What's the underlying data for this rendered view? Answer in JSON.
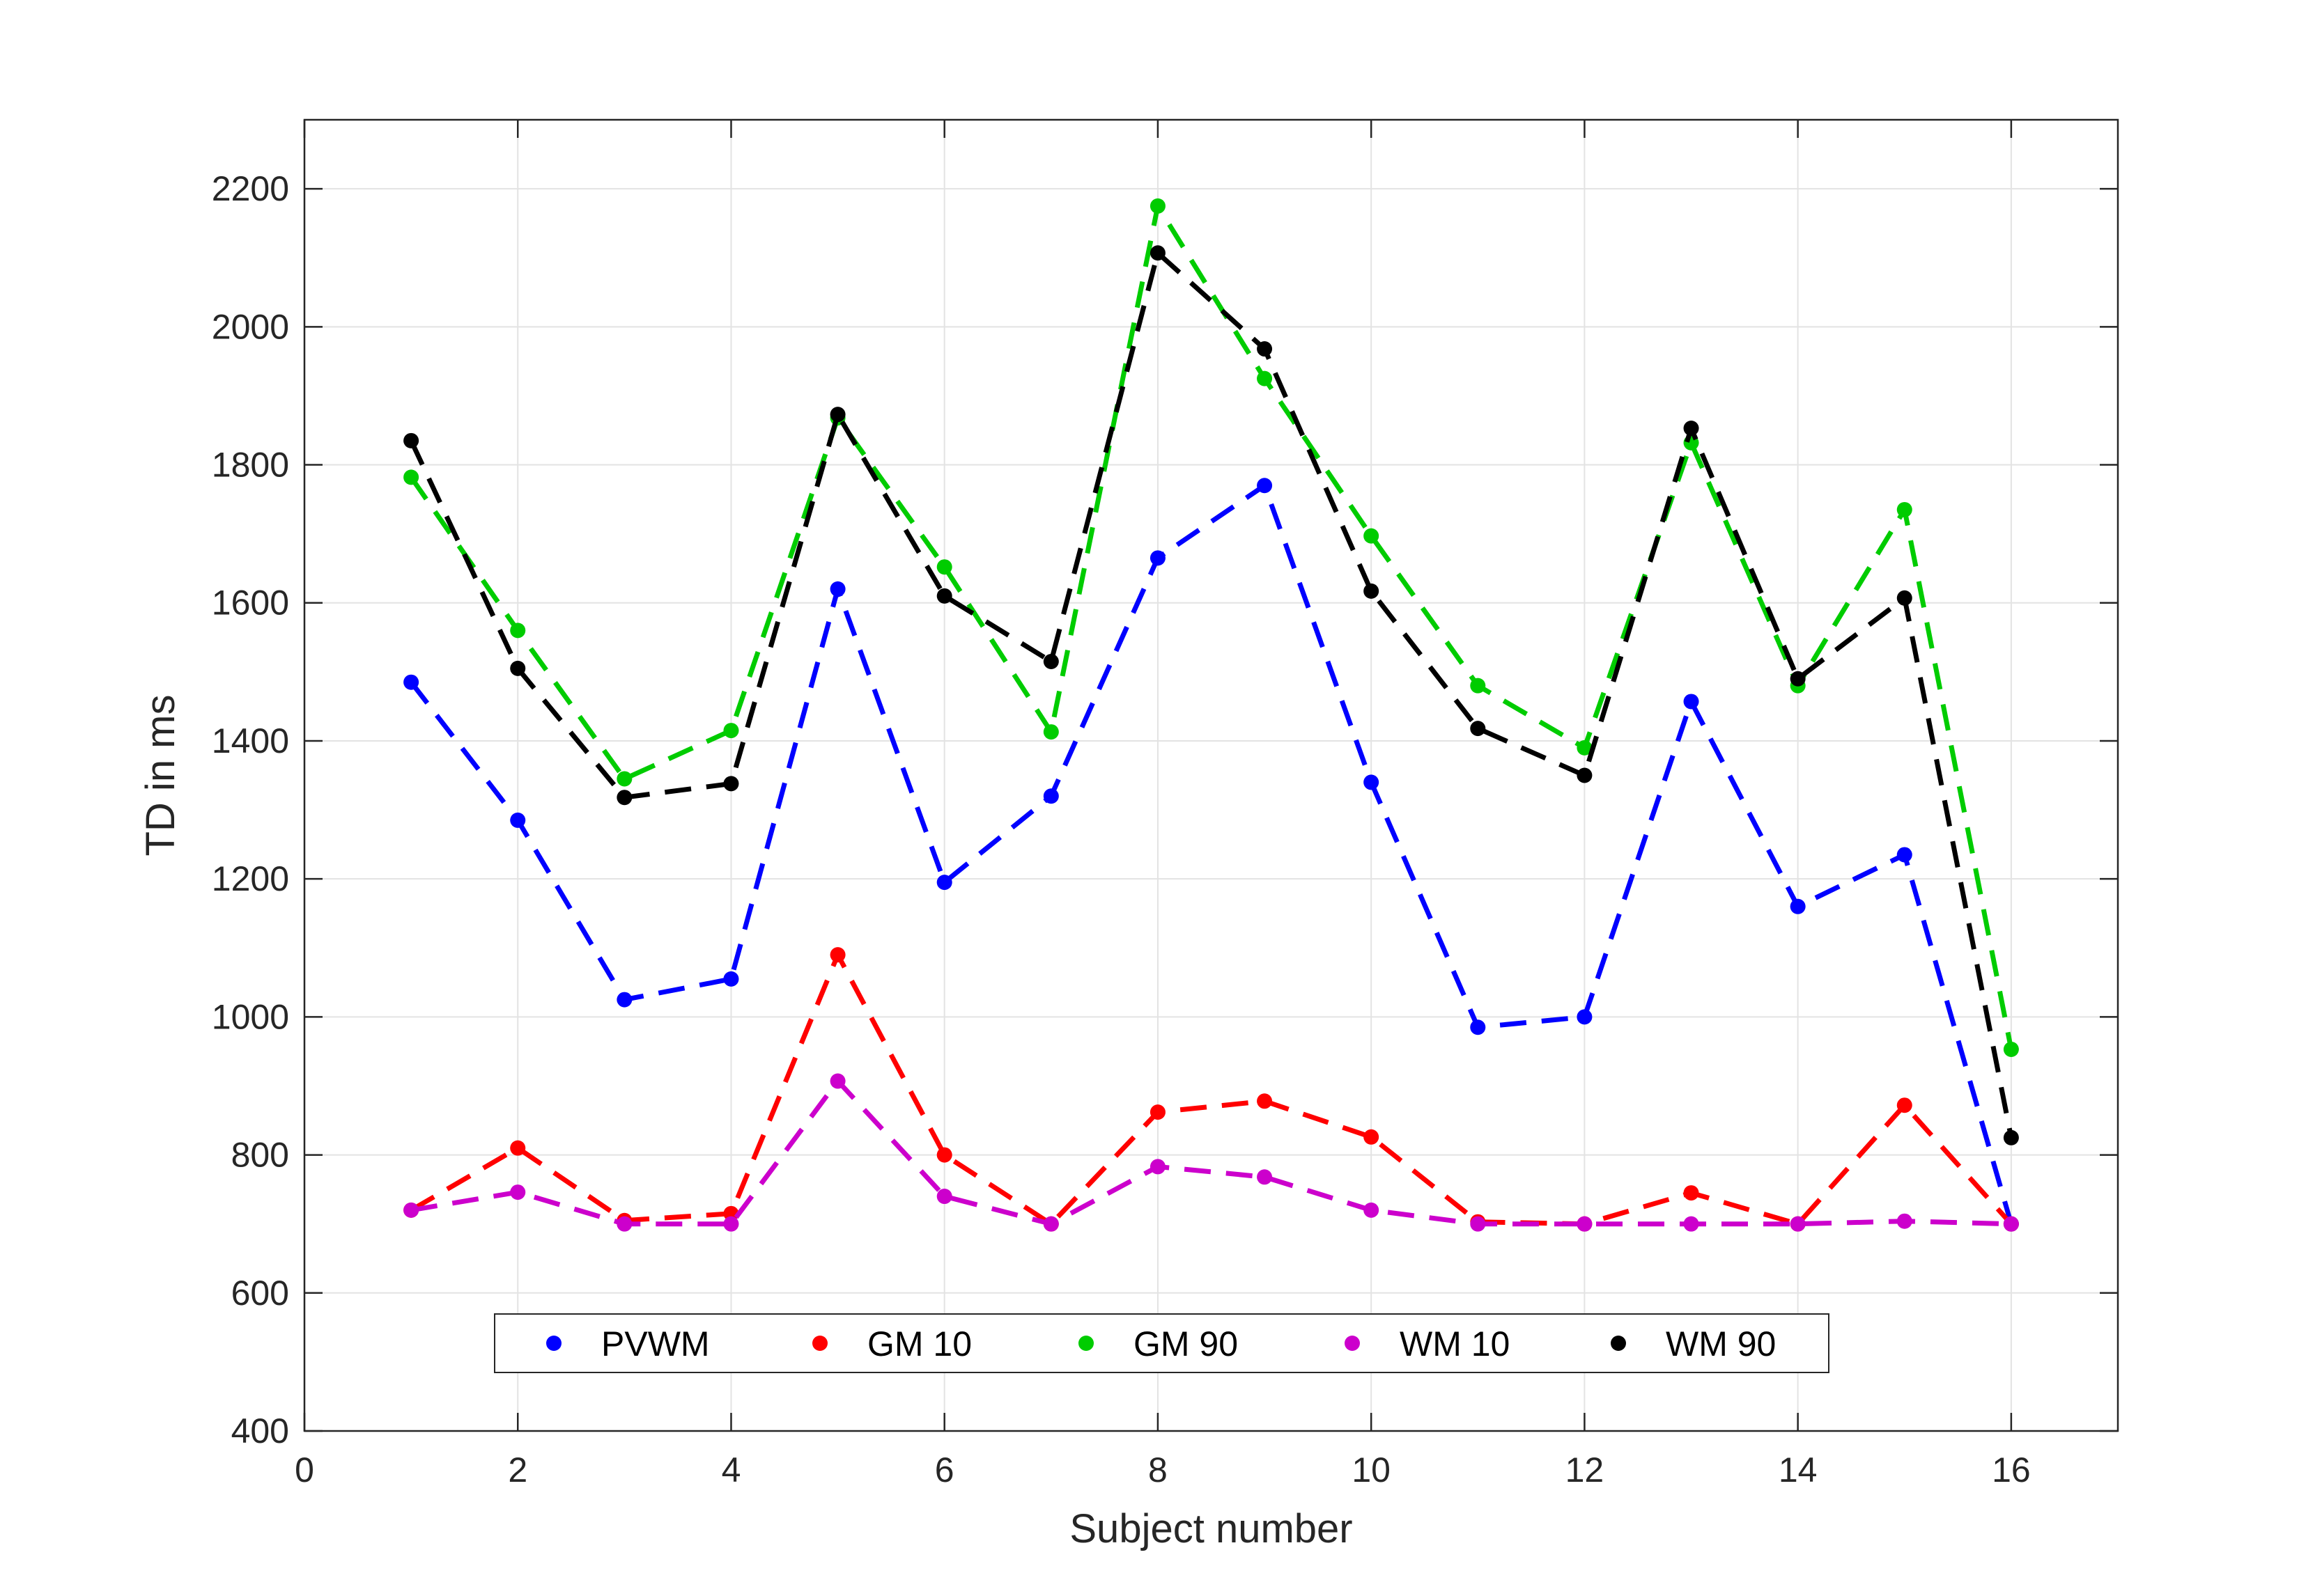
{
  "chart_data": {
    "type": "line",
    "title": "",
    "xlabel": "Subject number",
    "ylabel": "TD in ms",
    "xlim": [
      0,
      17
    ],
    "ylim": [
      400,
      2300
    ],
    "xticks": [
      0,
      2,
      4,
      6,
      8,
      10,
      12,
      14,
      16
    ],
    "yticks": [
      400,
      600,
      800,
      1000,
      1200,
      1400,
      1600,
      1800,
      2000,
      2200
    ],
    "grid": true,
    "legend_position": "bottom",
    "legend_orientation": "horizontal",
    "line_style": "dashed",
    "marker": "circle",
    "x": [
      1,
      2,
      3,
      4,
      5,
      6,
      7,
      8,
      9,
      10,
      11,
      12,
      13,
      14,
      15,
      16
    ],
    "series": [
      {
        "name": "PVWM",
        "color": "#0000ff",
        "values": [
          1485,
          1285,
          1025,
          1055,
          1620,
          1195,
          1320,
          1665,
          1770,
          1340,
          985,
          1000,
          1457,
          1160,
          1235,
          700
        ]
      },
      {
        "name": "GM 10",
        "color": "#ff0000",
        "values": [
          720,
          810,
          705,
          715,
          1090,
          800,
          700,
          862,
          878,
          826,
          703,
          700,
          745,
          700,
          872,
          700
        ]
      },
      {
        "name": "GM 90",
        "color": "#00cc00",
        "values": [
          1782,
          1560,
          1345,
          1415,
          1868,
          1652,
          1413,
          2175,
          1925,
          1697,
          1480,
          1390,
          1832,
          1480,
          1735,
          953
        ]
      },
      {
        "name": "WM 10",
        "color": "#cc00cc",
        "values": [
          720,
          746,
          700,
          700,
          907,
          740,
          700,
          783,
          768,
          720,
          700,
          700,
          700,
          700,
          704,
          700
        ]
      },
      {
        "name": "WM 90",
        "color": "#000000",
        "values": [
          1835,
          1505,
          1318,
          1338,
          1873,
          1610,
          1515,
          2107,
          1968,
          1617,
          1418,
          1350,
          1853,
          1490,
          1607,
          825
        ]
      }
    ]
  }
}
